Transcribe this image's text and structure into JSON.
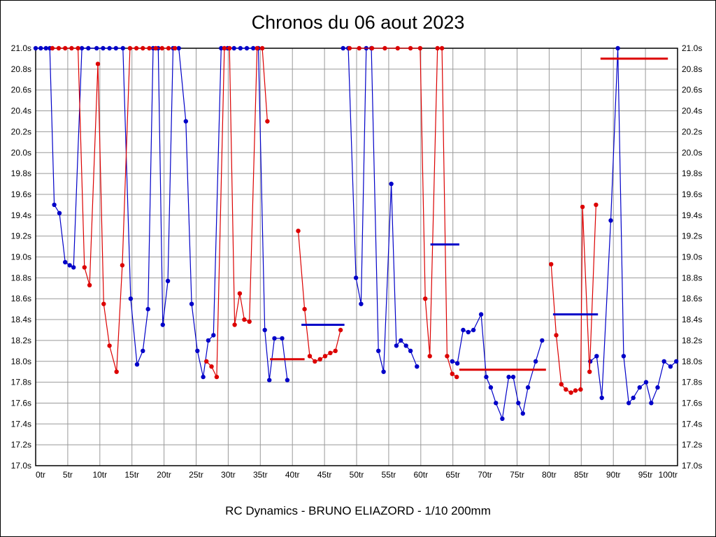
{
  "title": "Chronos du 06 aout 2023",
  "footer": "RC Dynamics - BRUNO ELIAZORD - 1/10 200mm",
  "chart_data": {
    "type": "line",
    "title": "Chronos du 06 aout 2023",
    "xlabel": "",
    "ylabel": "",
    "x_unit": "tr",
    "y_unit": "s",
    "xlim": [
      0,
      100
    ],
    "ylim": [
      17.0,
      21.0
    ],
    "x_tick_step": 5,
    "y_tick_step": 0.2,
    "grid": true,
    "legend_position": "none",
    "y_axis_side": "both",
    "colors": {
      "series_blue": "#0000c8",
      "series_red": "#dc0000",
      "grid": "#999999",
      "axis": "#000000",
      "background": "#ffffff"
    },
    "x_tick_labels": [
      "0tr",
      "5tr",
      "10tr",
      "15tr",
      "20tr",
      "25tr",
      "30tr",
      "35tr",
      "40tr",
      "45tr",
      "50tr",
      "55tr",
      "60tr",
      "65tr",
      "70tr",
      "75tr",
      "80tr",
      "85tr",
      "90tr",
      "95tr",
      "100tr"
    ],
    "y_tick_labels": [
      "21.0s",
      "20.8s",
      "20.6s",
      "20.4s",
      "20.2s",
      "20.0s",
      "19.8s",
      "19.6s",
      "19.4s",
      "19.2s",
      "19.0s",
      "18.8s",
      "18.6s",
      "18.4s",
      "18.2s",
      "18.0s",
      "17.8s",
      "17.6s",
      "17.4s",
      "17.2s",
      "17.0s"
    ],
    "series": [
      {
        "name": "driver-blue",
        "color": "#0000c8",
        "points": [
          [
            0,
            21
          ],
          [
            0.8,
            21
          ],
          [
            1.6,
            21
          ],
          [
            2.2,
            21
          ],
          [
            2.9,
            19.5
          ],
          [
            3.7,
            19.42
          ],
          [
            4.6,
            18.95
          ],
          [
            5.3,
            18.92
          ],
          [
            5.9,
            18.9
          ],
          [
            7.2,
            21
          ],
          [
            8.2,
            21
          ],
          [
            9.5,
            21
          ],
          [
            10.5,
            21
          ],
          [
            11.5,
            21
          ],
          [
            12.5,
            21
          ],
          [
            13.6,
            21
          ],
          [
            14.8,
            18.6
          ],
          [
            15.8,
            17.97
          ],
          [
            16.7,
            18.1
          ],
          [
            17.5,
            18.5
          ],
          [
            18.3,
            21
          ],
          [
            19.1,
            21
          ],
          [
            19.8,
            18.35
          ],
          [
            20.6,
            18.77
          ],
          [
            21.4,
            21
          ],
          [
            22.3,
            21
          ],
          [
            23.4,
            20.3
          ],
          [
            24.3,
            18.55
          ],
          [
            25.2,
            18.1
          ],
          [
            26.1,
            17.85
          ],
          [
            26.9,
            18.2
          ],
          [
            27.7,
            18.25
          ],
          [
            28.9,
            21
          ],
          [
            29.9,
            21
          ],
          [
            30.9,
            21
          ],
          [
            31.9,
            21
          ],
          [
            32.9,
            21
          ],
          [
            33.9,
            21
          ],
          [
            34.7,
            21
          ],
          [
            35.7,
            18.3
          ],
          [
            36.4,
            17.82
          ],
          [
            37.2,
            18.22
          ],
          [
            38.4,
            18.22
          ],
          [
            39.2,
            17.82
          ],
          null,
          [
            47.9,
            21
          ],
          [
            48.7,
            21
          ],
          [
            49.9,
            18.8
          ],
          [
            50.7,
            18.55
          ],
          [
            51.5,
            21
          ],
          [
            52.3,
            21
          ],
          [
            53.4,
            18.1
          ],
          [
            54.2,
            17.9
          ],
          [
            55.4,
            19.7
          ],
          [
            56.2,
            18.15
          ],
          [
            56.9,
            18.2
          ],
          [
            57.7,
            18.15
          ],
          [
            58.4,
            18.1
          ],
          [
            59.4,
            17.95
          ],
          null,
          [
            64.9,
            18.0
          ],
          [
            65.7,
            17.98
          ],
          [
            66.6,
            18.3
          ],
          [
            67.4,
            18.28
          ],
          [
            68.2,
            18.3
          ],
          [
            69.4,
            18.45
          ],
          [
            70.2,
            17.85
          ],
          [
            70.9,
            17.75
          ],
          [
            71.7,
            17.6
          ],
          [
            72.7,
            17.45
          ],
          [
            73.7,
            17.85
          ],
          [
            74.4,
            17.85
          ],
          [
            75.2,
            17.6
          ],
          [
            75.9,
            17.5
          ],
          [
            76.7,
            17.75
          ],
          [
            77.9,
            18.0
          ],
          [
            78.9,
            18.2
          ],
          null,
          [
            86.4,
            18.0
          ],
          [
            87.4,
            18.05
          ],
          [
            88.2,
            17.65
          ],
          [
            89.6,
            19.35
          ],
          [
            90.7,
            21
          ],
          [
            91.6,
            18.05
          ],
          [
            92.4,
            17.6
          ],
          [
            93.1,
            17.65
          ],
          [
            94.1,
            17.75
          ],
          [
            95.1,
            17.8
          ],
          [
            95.9,
            17.6
          ],
          [
            96.9,
            17.75
          ],
          [
            97.9,
            18.0
          ],
          [
            98.9,
            17.95
          ],
          [
            99.8,
            18.0
          ]
        ]
      },
      {
        "name": "driver-red",
        "color": "#dc0000",
        "points": [
          [
            2.6,
            21
          ],
          [
            3.6,
            21
          ],
          [
            4.6,
            21
          ],
          [
            5.6,
            21
          ],
          [
            6.6,
            21
          ],
          [
            7.6,
            18.9
          ],
          [
            8.4,
            18.73
          ],
          [
            9.7,
            20.85
          ],
          [
            10.6,
            18.55
          ],
          [
            11.5,
            18.15
          ],
          [
            12.6,
            17.9
          ],
          [
            13.5,
            18.92
          ],
          [
            14.7,
            21
          ],
          [
            15.7,
            21
          ],
          [
            16.7,
            21
          ],
          [
            17.7,
            21
          ],
          [
            18.7,
            21
          ],
          [
            19.7,
            21
          ],
          [
            20.7,
            21
          ],
          [
            21.7,
            21
          ],
          null,
          [
            26.6,
            18.0
          ],
          [
            27.4,
            17.95
          ],
          [
            28.2,
            17.85
          ],
          [
            29.4,
            21
          ],
          [
            30.2,
            21
          ],
          [
            31,
            18.35
          ],
          [
            31.8,
            18.65
          ],
          [
            32.5,
            18.4
          ],
          [
            33.3,
            18.38
          ],
          [
            34.5,
            21
          ],
          [
            35.3,
            21
          ],
          [
            36.1,
            20.3
          ],
          null,
          [
            40.9,
            19.25
          ],
          [
            41.9,
            18.5
          ],
          [
            42.7,
            18.05
          ],
          [
            43.5,
            18.0
          ],
          [
            44.3,
            18.02
          ],
          [
            45.1,
            18.05
          ],
          [
            45.9,
            18.08
          ],
          [
            46.7,
            18.1
          ],
          [
            47.5,
            18.3
          ],
          null,
          [
            48.9,
            21
          ],
          [
            50.4,
            21
          ],
          [
            52.4,
            21
          ],
          [
            54.4,
            21
          ],
          [
            56.4,
            21
          ],
          [
            58.4,
            21
          ],
          [
            59.9,
            21
          ],
          [
            60.7,
            18.6
          ],
          [
            61.4,
            18.05
          ],
          [
            62.6,
            21
          ],
          [
            63.3,
            21
          ],
          [
            64.1,
            18.05
          ],
          [
            64.9,
            17.88
          ],
          [
            65.6,
            17.85
          ],
          null,
          [
            80.3,
            18.93
          ],
          [
            81.1,
            18.25
          ],
          [
            81.9,
            17.78
          ],
          [
            82.6,
            17.73
          ],
          [
            83.4,
            17.7
          ],
          [
            84.1,
            17.72
          ],
          [
            84.9,
            17.73
          ],
          [
            85.2,
            19.48
          ],
          [
            86.3,
            17.9
          ],
          [
            87.3,
            19.5
          ]
        ]
      }
    ],
    "average_segments": [
      {
        "color": "#dc0000",
        "x1": 36.5,
        "x2": 41.9,
        "y": 18.02
      },
      {
        "color": "#0000c8",
        "x1": 41.4,
        "x2": 48.1,
        "y": 18.35
      },
      {
        "color": "#0000c8",
        "x1": 61.5,
        "x2": 66.0,
        "y": 19.12
      },
      {
        "color": "#dc0000",
        "x1": 66.0,
        "x2": 79.5,
        "y": 17.92
      },
      {
        "color": "#0000c8",
        "x1": 80.6,
        "x2": 87.6,
        "y": 18.45
      },
      {
        "color": "#dc0000",
        "x1": 88.0,
        "x2": 98.5,
        "y": 20.9
      }
    ]
  }
}
